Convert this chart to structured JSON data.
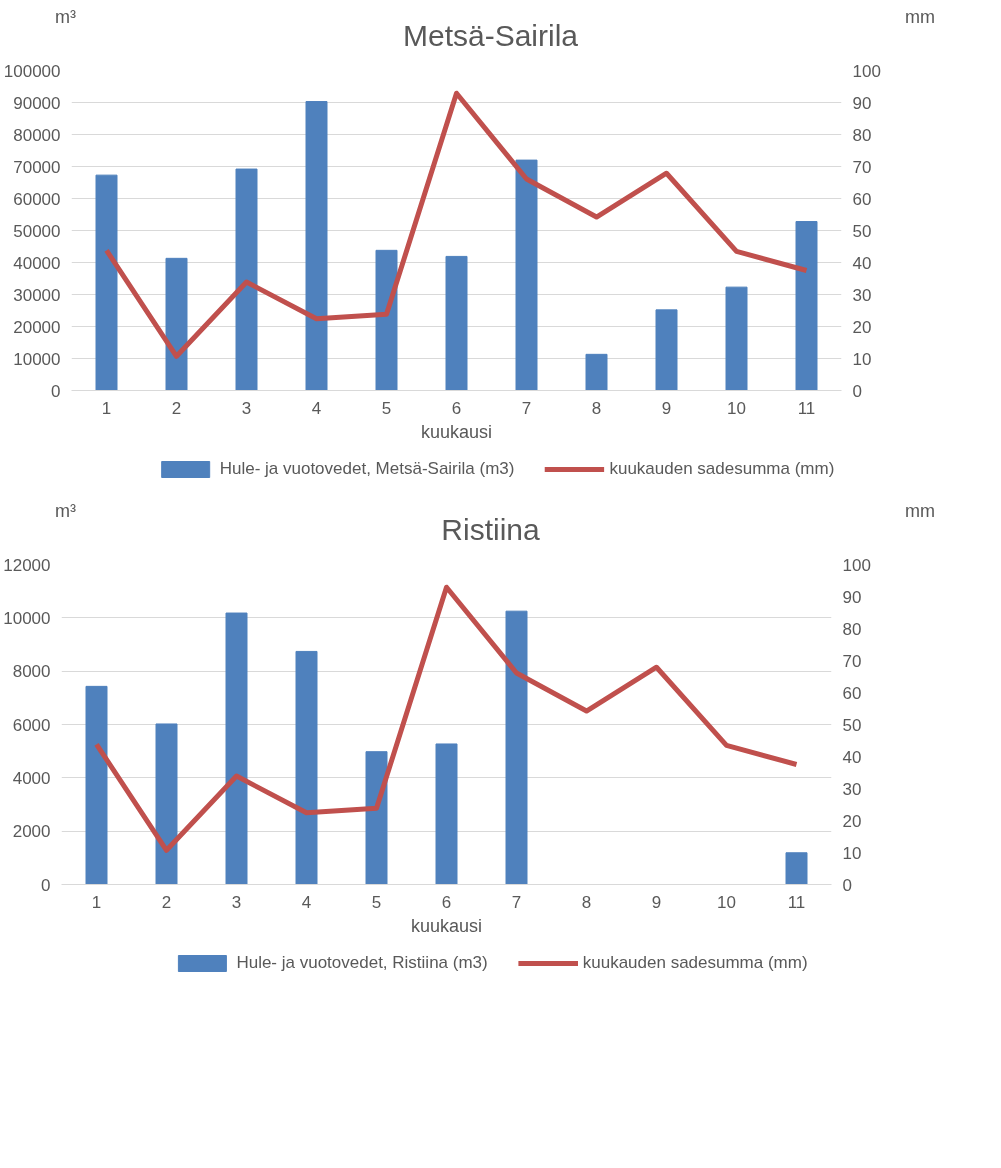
{
  "chart_data": [
    {
      "type": "bar",
      "title": "Metsä-Sairila",
      "xlabel": "kuukausi",
      "ylabel": "m³",
      "y2label": "mm",
      "categories": [
        "1",
        "2",
        "3",
        "4",
        "5",
        "6",
        "7",
        "8",
        "9",
        "10",
        "11"
      ],
      "series": [
        {
          "name": "Hule- ja vuotovedet, Metsä-Sairila (m3)",
          "color": "#4f81bd",
          "values": [
            67300,
            41300,
            69200,
            90300,
            43800,
            41900,
            72000,
            11300,
            25200,
            32300,
            52800
          ]
        },
        {
          "name": "kuukauden sadesumma (mm)",
          "type": "line",
          "axis": "y2",
          "color": "#c0504d",
          "values": [
            43.8,
            10.7,
            33.9,
            22.4,
            23.8,
            92.9,
            66.1,
            54.2,
            67.9,
            43.5,
            37.5
          ]
        }
      ],
      "ylim": [
        0,
        100000
      ],
      "yticks": [
        0,
        10000,
        20000,
        30000,
        40000,
        50000,
        60000,
        70000,
        80000,
        90000,
        100000
      ],
      "y2lim": [
        0,
        100
      ],
      "y2ticks": [
        0,
        10,
        20,
        30,
        40,
        50,
        60,
        70,
        80,
        90,
        100
      ],
      "grid": "y",
      "legend": "bottom"
    },
    {
      "type": "bar",
      "title": "Ristiina",
      "xlabel": "kuukausi",
      "ylabel": "m³",
      "y2label": "mm",
      "categories": [
        "1",
        "2",
        "3",
        "4",
        "5",
        "6",
        "7",
        "8",
        "9",
        "10",
        "11"
      ],
      "series": [
        {
          "name": "Hule- ja vuotovedet, Ristiina (m3)",
          "color": "#4f81bd",
          "values": [
            7430,
            6020,
            10180,
            8740,
            4980,
            5270,
            10250,
            0,
            null,
            null,
            1190
          ]
        },
        {
          "name": "kuukauden sadesumma (mm)",
          "type": "line",
          "axis": "y2",
          "color": "#c0504d",
          "values": [
            43.8,
            10.7,
            33.9,
            22.4,
            23.8,
            92.9,
            66.1,
            54.2,
            67.9,
            43.5,
            37.5
          ]
        }
      ],
      "ylim": [
        0,
        12000
      ],
      "yticks": [
        0,
        2000,
        4000,
        6000,
        8000,
        10000,
        12000
      ],
      "y2lim": [
        0,
        100
      ],
      "y2ticks": [
        0,
        10,
        20,
        30,
        40,
        50,
        60,
        70,
        80,
        90,
        100
      ],
      "grid": "y",
      "legend": "bottom"
    }
  ]
}
